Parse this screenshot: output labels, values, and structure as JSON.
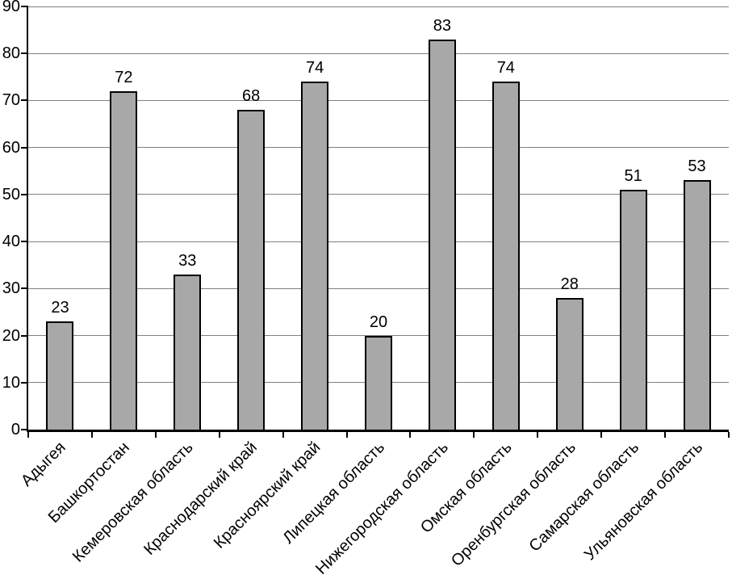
{
  "chart_data": {
    "type": "bar",
    "title": "",
    "xlabel": "",
    "ylabel": "",
    "categories": [
      "Адыгея",
      "Башкортостан",
      "Кемеровская область",
      "Краснодарский край",
      "Красноярский край",
      "Липецкая область",
      "Нижегородская область",
      "Омская область",
      "Оренбургская область",
      "Самарская область",
      "Ульяновская область"
    ],
    "values": [
      23,
      72,
      33,
      68,
      74,
      20,
      83,
      74,
      28,
      51,
      53
    ],
    "ylim": [
      0,
      90
    ],
    "yticks": [
      0,
      10,
      20,
      30,
      40,
      50,
      60,
      70,
      80,
      90
    ],
    "grid": true,
    "legend": false,
    "show_data_labels": true,
    "x_label_rotation_deg": 45,
    "colors": {
      "background": "#FFFFFF",
      "bar_fill": "#A8A8A8",
      "bar_border": "#000000",
      "gridline": "#808080",
      "axis": "#000000",
      "text": "#000000"
    }
  }
}
